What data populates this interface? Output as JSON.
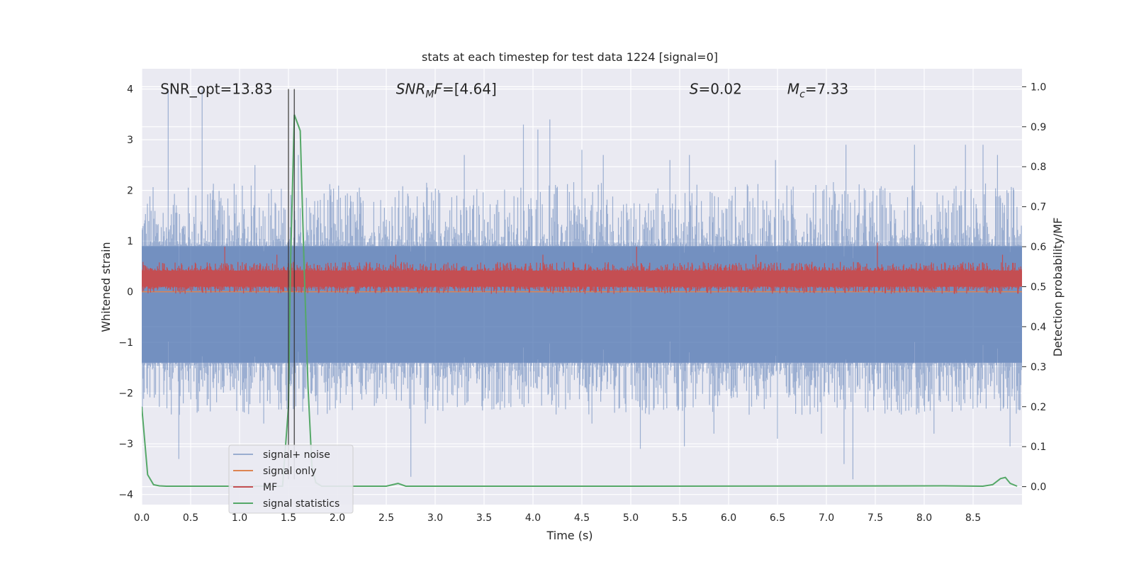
{
  "chart_data": {
    "type": "line",
    "title": "stats at each timestep for test data 1224 [signal=0]",
    "xlabel": "Time (s)",
    "ylabel": "Whitened strain",
    "ylabel_right": "Detection probability/MF",
    "xlim": [
      0.0,
      9.0
    ],
    "ylim": [
      -4.2,
      4.4
    ],
    "ylim_right": [
      -0.045,
      1.045
    ],
    "x_ticks": [
      0.0,
      0.5,
      1.0,
      1.5,
      2.0,
      2.5,
      3.0,
      3.5,
      4.0,
      4.5,
      5.0,
      5.5,
      6.0,
      6.5,
      7.0,
      7.5,
      8.0,
      8.5
    ],
    "x_tick_labels": [
      "0.0",
      "0.5",
      "1.0",
      "1.5",
      "2.0",
      "2.5",
      "3.0",
      "3.5",
      "4.0",
      "4.5",
      "5.0",
      "5.5",
      "6.0",
      "6.5",
      "7.0",
      "7.5",
      "8.0",
      "8.5"
    ],
    "y_ticks": [
      -4,
      -3,
      -2,
      -1,
      0,
      1,
      2,
      3,
      4
    ],
    "y_tick_labels": [
      "−4",
      "−3",
      "−2",
      "−1",
      "0",
      "1",
      "2",
      "3",
      "4"
    ],
    "y_ticks_right": [
      0.0,
      0.1,
      0.2,
      0.3,
      0.4,
      0.5,
      0.6,
      0.7,
      0.8,
      0.9,
      1.0
    ],
    "y_tick_labels_right": [
      "0.0",
      "0.1",
      "0.2",
      "0.3",
      "0.4",
      "0.5",
      "0.6",
      "0.7",
      "0.8",
      "0.9",
      "1.0"
    ],
    "grid": true,
    "legend_position": "lower-left",
    "vertical_lines_x": [
      1.5,
      1.56
    ],
    "annotations": [
      {
        "text": "SNR_opt=13.83",
        "x": 0.19,
        "y": 4.0
      },
      {
        "text_italic": "SNR",
        "sub": "M",
        "text_italic2": "F",
        "rest": "=[4.64]",
        "x": 2.6,
        "y": 4.0
      },
      {
        "text_italic": "S",
        "rest": "=0.02",
        "x": 5.6,
        "y": 4.0
      },
      {
        "text_italic": "M",
        "sub": "c",
        "rest": "=7.33",
        "x": 6.6,
        "y": 4.0
      }
    ],
    "series": [
      {
        "name": "signal+ noise",
        "color": "#4c72b0",
        "opacity": 0.5,
        "axis": "left",
        "kind": "dense-noise",
        "band_high": 0.9,
        "band_low": -1.4,
        "spikes": [
          [
            0.27,
            4.0
          ],
          [
            0.62,
            4.0
          ],
          [
            1.16,
            2.5
          ],
          [
            1.6,
            2.7
          ],
          [
            2.75,
            2.7
          ],
          [
            3.3,
            2.7
          ],
          [
            3.9,
            3.3
          ],
          [
            4.05,
            3.2
          ],
          [
            4.17,
            3.4
          ],
          [
            4.5,
            2.8
          ],
          [
            4.72,
            2.7
          ],
          [
            5.1,
            2.4
          ],
          [
            5.4,
            2.6
          ],
          [
            5.6,
            2.7
          ],
          [
            6.48,
            2.6
          ],
          [
            7.2,
            2.9
          ],
          [
            7.9,
            2.9
          ],
          [
            8.42,
            2.9
          ],
          [
            8.6,
            2.9
          ],
          [
            8.75,
            2.7
          ],
          [
            0.38,
            -3.3
          ],
          [
            1.25,
            -2.6
          ],
          [
            2.75,
            -3.65
          ],
          [
            2.9,
            -2.6
          ],
          [
            4.6,
            -2.6
          ],
          [
            5.1,
            -3.1
          ],
          [
            5.55,
            -3.05
          ],
          [
            5.85,
            -2.8
          ],
          [
            6.5,
            -2.9
          ],
          [
            6.95,
            -2.8
          ],
          [
            7.18,
            -3.4
          ],
          [
            7.27,
            -3.7
          ],
          [
            8.1,
            -2.8
          ],
          [
            8.88,
            -3.05
          ]
        ]
      },
      {
        "name": "signal only",
        "color": "#dd8452",
        "axis": "left",
        "kind": "flat",
        "value": 0.0
      },
      {
        "name": "MF",
        "color": "#c44e52",
        "axis": "right",
        "kind": "dense-noise",
        "band_high": 0.54,
        "band_low": 0.5,
        "spikes": [
          [
            0.85,
            0.6
          ],
          [
            1.38,
            0.58
          ],
          [
            1.66,
            0.55
          ],
          [
            2.6,
            0.58
          ],
          [
            4.1,
            0.58
          ],
          [
            5.06,
            0.6
          ],
          [
            6.28,
            0.58
          ],
          [
            7.52,
            0.61
          ],
          [
            8.8,
            0.58
          ]
        ]
      },
      {
        "name": "signal statistics",
        "color": "#55a868",
        "axis": "right",
        "kind": "line",
        "x": [
          0.0,
          0.06,
          0.12,
          0.18,
          0.25,
          0.4,
          0.8,
          1.2,
          1.44,
          1.5,
          1.52,
          1.56,
          1.62,
          1.66,
          1.7,
          1.74,
          1.78,
          1.84,
          2.2,
          2.5,
          2.62,
          2.7,
          3.0,
          5.0,
          8.2,
          8.6,
          8.7,
          8.78,
          8.83,
          8.88,
          8.95
        ],
        "y": [
          0.2,
          0.03,
          0.005,
          0.002,
          0.001,
          0.001,
          0.001,
          0.001,
          0.001,
          0.2,
          0.55,
          0.93,
          0.89,
          0.55,
          0.25,
          0.05,
          0.01,
          0.001,
          0.001,
          0.001,
          0.008,
          0.001,
          0.001,
          0.001,
          0.002,
          0.001,
          0.005,
          0.02,
          0.023,
          0.008,
          0.001
        ]
      }
    ]
  }
}
